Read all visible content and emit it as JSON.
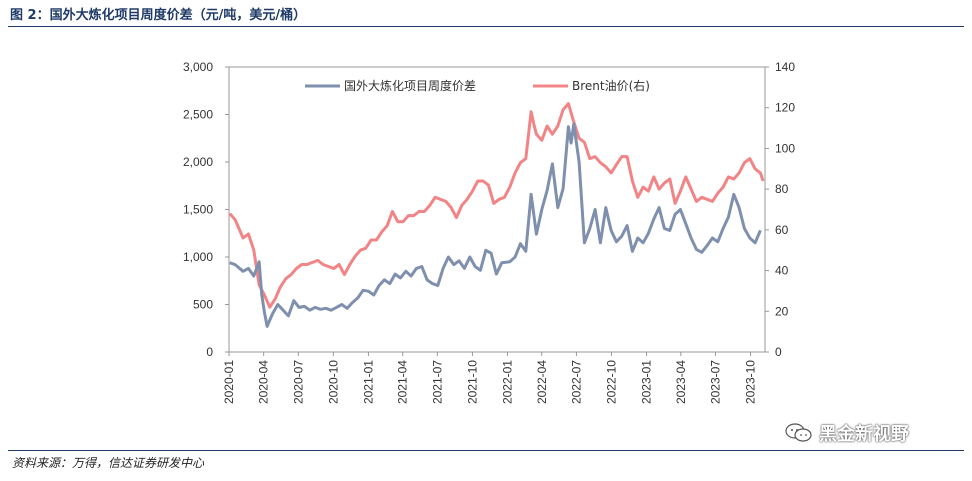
{
  "figure": {
    "title": "图 2：国外大炼化项目周度价差（元/吨，美元/桶）",
    "source": "资料来源：万得，信达证券研发中心",
    "watermark": "黑金新视野"
  },
  "colors": {
    "spread": "#7f8fae",
    "brent": "#f28486",
    "title": "#1f3a68"
  },
  "chart_data": {
    "type": "line",
    "title": "",
    "xlabel": "",
    "ylabel": "",
    "x_ticks": [
      "2020-01",
      "2020-04",
      "2020-07",
      "2020-10",
      "2021-01",
      "2021-04",
      "2021-07",
      "2021-10",
      "2022-01",
      "2022-04",
      "2022-07",
      "2022-10",
      "2023-01",
      "2023-04",
      "2023-07",
      "2023-10"
    ],
    "ylim_left": [
      0,
      3000
    ],
    "yticks_left": [
      "0",
      "500",
      "1,000",
      "1,500",
      "2,000",
      "2,500",
      "3,000"
    ],
    "ylim_right": [
      0,
      140
    ],
    "yticks_right": [
      "0",
      "20",
      "40",
      "60",
      "80",
      "100",
      "120",
      "140"
    ],
    "grid": false,
    "legend_position": "top",
    "series": [
      {
        "name": "国外大炼化项目周度价差",
        "axis": "left",
        "points": [
          [
            "2020-01-03",
            940
          ],
          [
            "2020-01-17",
            920
          ],
          [
            "2020-02-07",
            850
          ],
          [
            "2020-02-21",
            880
          ],
          [
            "2020-03-06",
            800
          ],
          [
            "2020-03-20",
            950
          ],
          [
            "2020-03-27",
            600
          ],
          [
            "2020-04-03",
            420
          ],
          [
            "2020-04-10",
            270
          ],
          [
            "2020-04-24",
            400
          ],
          [
            "2020-05-08",
            500
          ],
          [
            "2020-05-22",
            440
          ],
          [
            "2020-06-05",
            380
          ],
          [
            "2020-06-19",
            540
          ],
          [
            "2020-07-03",
            470
          ],
          [
            "2020-07-17",
            480
          ],
          [
            "2020-07-31",
            440
          ],
          [
            "2020-08-14",
            470
          ],
          [
            "2020-08-28",
            450
          ],
          [
            "2020-09-11",
            460
          ],
          [
            "2020-09-25",
            440
          ],
          [
            "2020-10-09",
            470
          ],
          [
            "2020-10-23",
            500
          ],
          [
            "2020-11-06",
            460
          ],
          [
            "2020-11-20",
            520
          ],
          [
            "2020-12-04",
            570
          ],
          [
            "2020-12-18",
            650
          ],
          [
            "2021-01-01",
            640
          ],
          [
            "2021-01-15",
            600
          ],
          [
            "2021-01-29",
            700
          ],
          [
            "2021-02-12",
            760
          ],
          [
            "2021-02-26",
            720
          ],
          [
            "2021-03-12",
            820
          ],
          [
            "2021-03-26",
            780
          ],
          [
            "2021-04-09",
            850
          ],
          [
            "2021-04-23",
            800
          ],
          [
            "2021-05-07",
            880
          ],
          [
            "2021-05-21",
            900
          ],
          [
            "2021-06-04",
            760
          ],
          [
            "2021-06-18",
            720
          ],
          [
            "2021-07-02",
            700
          ],
          [
            "2021-07-16",
            880
          ],
          [
            "2021-07-30",
            1000
          ],
          [
            "2021-08-13",
            920
          ],
          [
            "2021-08-27",
            960
          ],
          [
            "2021-09-10",
            880
          ],
          [
            "2021-09-24",
            1000
          ],
          [
            "2021-10-08",
            900
          ],
          [
            "2021-10-22",
            860
          ],
          [
            "2021-11-05",
            1070
          ],
          [
            "2021-11-19",
            1040
          ],
          [
            "2021-12-03",
            820
          ],
          [
            "2021-12-17",
            940
          ],
          [
            "2022-01-07",
            950
          ],
          [
            "2022-01-21",
            1000
          ],
          [
            "2022-02-04",
            1140
          ],
          [
            "2022-02-18",
            1060
          ],
          [
            "2022-03-04",
            1660
          ],
          [
            "2022-03-18",
            1240
          ],
          [
            "2022-04-01",
            1500
          ],
          [
            "2022-04-15",
            1700
          ],
          [
            "2022-04-29",
            1980
          ],
          [
            "2022-05-13",
            1520
          ],
          [
            "2022-05-27",
            1720
          ],
          [
            "2022-06-10",
            2370
          ],
          [
            "2022-06-17",
            2200
          ],
          [
            "2022-06-24",
            2400
          ],
          [
            "2022-07-08",
            2000
          ],
          [
            "2022-07-22",
            1150
          ],
          [
            "2022-08-05",
            1300
          ],
          [
            "2022-08-19",
            1500
          ],
          [
            "2022-09-02",
            1150
          ],
          [
            "2022-09-16",
            1520
          ],
          [
            "2022-09-30",
            1280
          ],
          [
            "2022-10-14",
            1160
          ],
          [
            "2022-10-28",
            1220
          ],
          [
            "2022-11-11",
            1330
          ],
          [
            "2022-11-25",
            1060
          ],
          [
            "2022-12-09",
            1200
          ],
          [
            "2022-12-23",
            1150
          ],
          [
            "2023-01-06",
            1250
          ],
          [
            "2023-01-20",
            1400
          ],
          [
            "2023-02-03",
            1520
          ],
          [
            "2023-02-17",
            1300
          ],
          [
            "2023-03-03",
            1280
          ],
          [
            "2023-03-17",
            1450
          ],
          [
            "2023-03-31",
            1500
          ],
          [
            "2023-04-14",
            1350
          ],
          [
            "2023-04-28",
            1200
          ],
          [
            "2023-05-12",
            1080
          ],
          [
            "2023-05-26",
            1050
          ],
          [
            "2023-06-09",
            1120
          ],
          [
            "2023-06-23",
            1200
          ],
          [
            "2023-07-07",
            1160
          ],
          [
            "2023-07-21",
            1300
          ],
          [
            "2023-08-04",
            1420
          ],
          [
            "2023-08-18",
            1660
          ],
          [
            "2023-09-01",
            1520
          ],
          [
            "2023-09-15",
            1300
          ],
          [
            "2023-09-29",
            1200
          ],
          [
            "2023-10-13",
            1150
          ],
          [
            "2023-10-27",
            1280
          ]
        ]
      },
      {
        "name": "Brent油价(右)",
        "axis": "right",
        "points": [
          [
            "2020-01-03",
            68
          ],
          [
            "2020-01-17",
            65
          ],
          [
            "2020-02-07",
            56
          ],
          [
            "2020-02-21",
            58
          ],
          [
            "2020-03-06",
            50
          ],
          [
            "2020-03-20",
            33
          ],
          [
            "2020-04-03",
            28
          ],
          [
            "2020-04-17",
            22
          ],
          [
            "2020-05-01",
            26
          ],
          [
            "2020-05-15",
            32
          ],
          [
            "2020-05-29",
            36
          ],
          [
            "2020-06-12",
            38
          ],
          [
            "2020-06-26",
            41
          ],
          [
            "2020-07-10",
            43
          ],
          [
            "2020-07-24",
            43
          ],
          [
            "2020-08-07",
            44
          ],
          [
            "2020-08-21",
            45
          ],
          [
            "2020-09-04",
            43
          ],
          [
            "2020-09-18",
            42
          ],
          [
            "2020-10-02",
            41
          ],
          [
            "2020-10-16",
            43
          ],
          [
            "2020-10-30",
            38
          ],
          [
            "2020-11-13",
            43
          ],
          [
            "2020-11-27",
            47
          ],
          [
            "2020-12-11",
            50
          ],
          [
            "2020-12-25",
            51
          ],
          [
            "2021-01-08",
            55
          ],
          [
            "2021-01-22",
            55
          ],
          [
            "2021-02-05",
            59
          ],
          [
            "2021-02-19",
            62
          ],
          [
            "2021-03-05",
            69
          ],
          [
            "2021-03-19",
            64
          ],
          [
            "2021-04-02",
            64
          ],
          [
            "2021-04-16",
            67
          ],
          [
            "2021-04-30",
            67
          ],
          [
            "2021-05-14",
            69
          ],
          [
            "2021-05-28",
            69
          ],
          [
            "2021-06-11",
            72
          ],
          [
            "2021-06-25",
            76
          ],
          [
            "2021-07-09",
            75
          ],
          [
            "2021-07-23",
            74
          ],
          [
            "2021-08-06",
            71
          ],
          [
            "2021-08-20",
            66
          ],
          [
            "2021-09-03",
            72
          ],
          [
            "2021-09-17",
            75
          ],
          [
            "2021-10-01",
            79
          ],
          [
            "2021-10-15",
            84
          ],
          [
            "2021-10-29",
            84
          ],
          [
            "2021-11-12",
            82
          ],
          [
            "2021-11-26",
            73
          ],
          [
            "2021-12-10",
            75
          ],
          [
            "2021-12-24",
            76
          ],
          [
            "2022-01-07",
            81
          ],
          [
            "2022-01-21",
            88
          ],
          [
            "2022-02-04",
            93
          ],
          [
            "2022-02-18",
            95
          ],
          [
            "2022-03-04",
            118
          ],
          [
            "2022-03-11",
            112
          ],
          [
            "2022-03-18",
            107
          ],
          [
            "2022-04-01",
            104
          ],
          [
            "2022-04-15",
            111
          ],
          [
            "2022-04-29",
            107
          ],
          [
            "2022-05-13",
            111
          ],
          [
            "2022-05-27",
            119
          ],
          [
            "2022-06-10",
            122
          ],
          [
            "2022-06-24",
            113
          ],
          [
            "2022-07-08",
            105
          ],
          [
            "2022-07-22",
            103
          ],
          [
            "2022-08-05",
            95
          ],
          [
            "2022-08-19",
            96
          ],
          [
            "2022-09-02",
            93
          ],
          [
            "2022-09-16",
            91
          ],
          [
            "2022-09-30",
            88
          ],
          [
            "2022-10-14",
            92
          ],
          [
            "2022-10-28",
            96
          ],
          [
            "2022-11-11",
            96
          ],
          [
            "2022-11-25",
            84
          ],
          [
            "2022-12-09",
            76
          ],
          [
            "2022-12-23",
            81
          ],
          [
            "2023-01-06",
            79
          ],
          [
            "2023-01-20",
            86
          ],
          [
            "2023-02-03",
            80
          ],
          [
            "2023-02-17",
            83
          ],
          [
            "2023-03-03",
            85
          ],
          [
            "2023-03-17",
            73
          ],
          [
            "2023-03-31",
            79
          ],
          [
            "2023-04-14",
            86
          ],
          [
            "2023-04-28",
            80
          ],
          [
            "2023-05-12",
            74
          ],
          [
            "2023-05-26",
            76
          ],
          [
            "2023-06-09",
            75
          ],
          [
            "2023-06-23",
            74
          ],
          [
            "2023-07-07",
            78
          ],
          [
            "2023-07-21",
            81
          ],
          [
            "2023-08-04",
            86
          ],
          [
            "2023-08-18",
            85
          ],
          [
            "2023-09-01",
            88
          ],
          [
            "2023-09-15",
            93
          ],
          [
            "2023-09-29",
            95
          ],
          [
            "2023-10-13",
            90
          ],
          [
            "2023-10-27",
            88
          ],
          [
            "2023-11-03",
            84
          ]
        ]
      }
    ]
  }
}
